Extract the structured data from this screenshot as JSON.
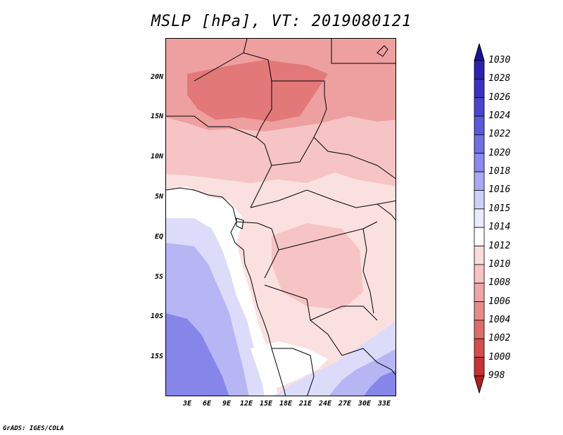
{
  "title": "MSLP [hPa], VT: 2019080121",
  "credit": "GrADS: IGES/COLA",
  "lat_ticks": [
    "20N",
    "15N",
    "10N",
    "5N",
    "EQ",
    "5S",
    "10S",
    "15S"
  ],
  "lon_ticks": [
    "3E",
    "6E",
    "9E",
    "12E",
    "15E",
    "18E",
    "21E",
    "24E",
    "27E",
    "30E",
    "33E"
  ],
  "colorbar": {
    "labels": [
      "1030",
      "1028",
      "1026",
      "1024",
      "1022",
      "1020",
      "1018",
      "1016",
      "1015",
      "1014",
      "1012",
      "1010",
      "1008",
      "1006",
      "1004",
      "1002",
      "1000",
      "998"
    ],
    "colors": [
      "#1e0f9b",
      "#2d1fb0",
      "#3d31c4",
      "#4a44d2",
      "#5b59dc",
      "#7070e6",
      "#8a8aee",
      "#a8a8f4",
      "#cfd0fa",
      "#eaeaff",
      "#ffffff",
      "#fadcdc",
      "#f7c3c3",
      "#f0a5a5",
      "#e88a8a",
      "#e06b6b",
      "#d84c4c",
      "#c93232",
      "#b71c1c"
    ]
  },
  "regions": {
    "high_blue": "#8585ea",
    "mid_blue": "#b6b6f4",
    "light_blue": "#dcdcfa",
    "white": "#ffffff",
    "pale_pink": "#fbe0e0",
    "light_pink": "#f6c4c4",
    "pink": "#ee9f9f",
    "deep_pink": "#e27878"
  }
}
